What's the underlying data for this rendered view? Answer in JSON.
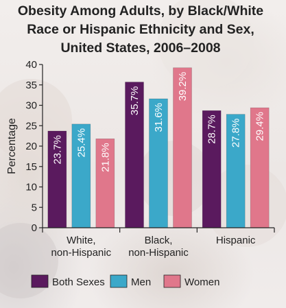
{
  "chart_data": {
    "type": "bar",
    "title_lines": [
      "Obesity Among Adults, by Black/White",
      "Race or Hispanic Ethnicity and Sex,",
      "United States, 2006–2008"
    ],
    "ylabel": "Percentage",
    "xlabel": "",
    "ylim": [
      0,
      40
    ],
    "yticks": [
      0,
      5,
      10,
      15,
      20,
      25,
      30,
      35,
      40
    ],
    "categories": [
      [
        "White,",
        "non-Hispanic"
      ],
      [
        "Black,",
        "non-Hispanic"
      ],
      [
        "Hispanic"
      ]
    ],
    "series": [
      {
        "name": "Both Sexes",
        "color": "#5a1a5e",
        "values": [
          23.7,
          35.7,
          28.7
        ],
        "labels": [
          "23.7%",
          "35.7%",
          "28.7%"
        ]
      },
      {
        "name": "Men",
        "color": "#3ba8c9",
        "values": [
          25.4,
          31.6,
          27.8
        ],
        "labels": [
          "25.4%",
          "31.6%",
          "27.8%"
        ]
      },
      {
        "name": "Women",
        "color": "#e0778b",
        "values": [
          21.8,
          39.2,
          29.4
        ],
        "labels": [
          "21.8%",
          "39.2%",
          "29.4%"
        ]
      }
    ],
    "legend_position": "bottom",
    "grid": false
  }
}
